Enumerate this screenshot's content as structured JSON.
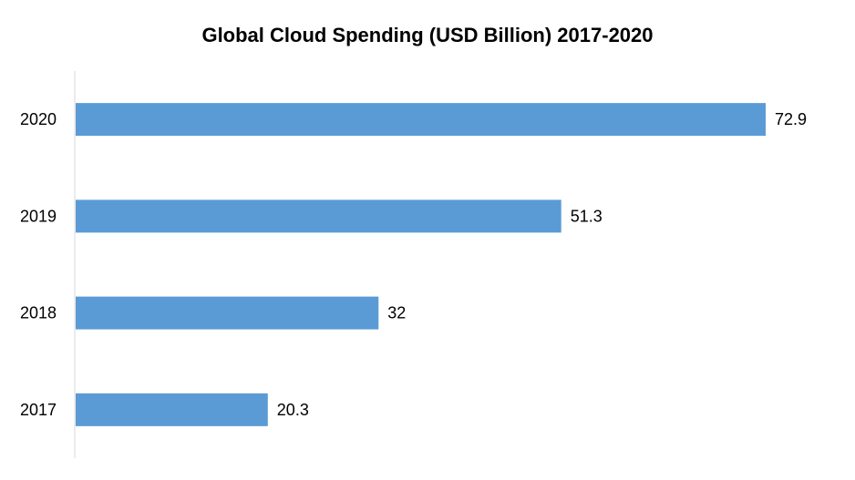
{
  "chart_data": {
    "type": "bar",
    "orientation": "horizontal",
    "title": "Global Cloud Spending (USD Billion) 2017-2020",
    "categories": [
      "2017",
      "2018",
      "2019",
      "2020"
    ],
    "values": [
      20.3,
      32,
      51.3,
      72.9
    ],
    "data_labels": [
      "20.3",
      "32",
      "51.3",
      "72.9"
    ],
    "xlabel": "",
    "ylabel": "",
    "xlim": [
      0,
      80
    ],
    "grid": false,
    "legend": "none",
    "bar_color": "#5b9bd5"
  }
}
